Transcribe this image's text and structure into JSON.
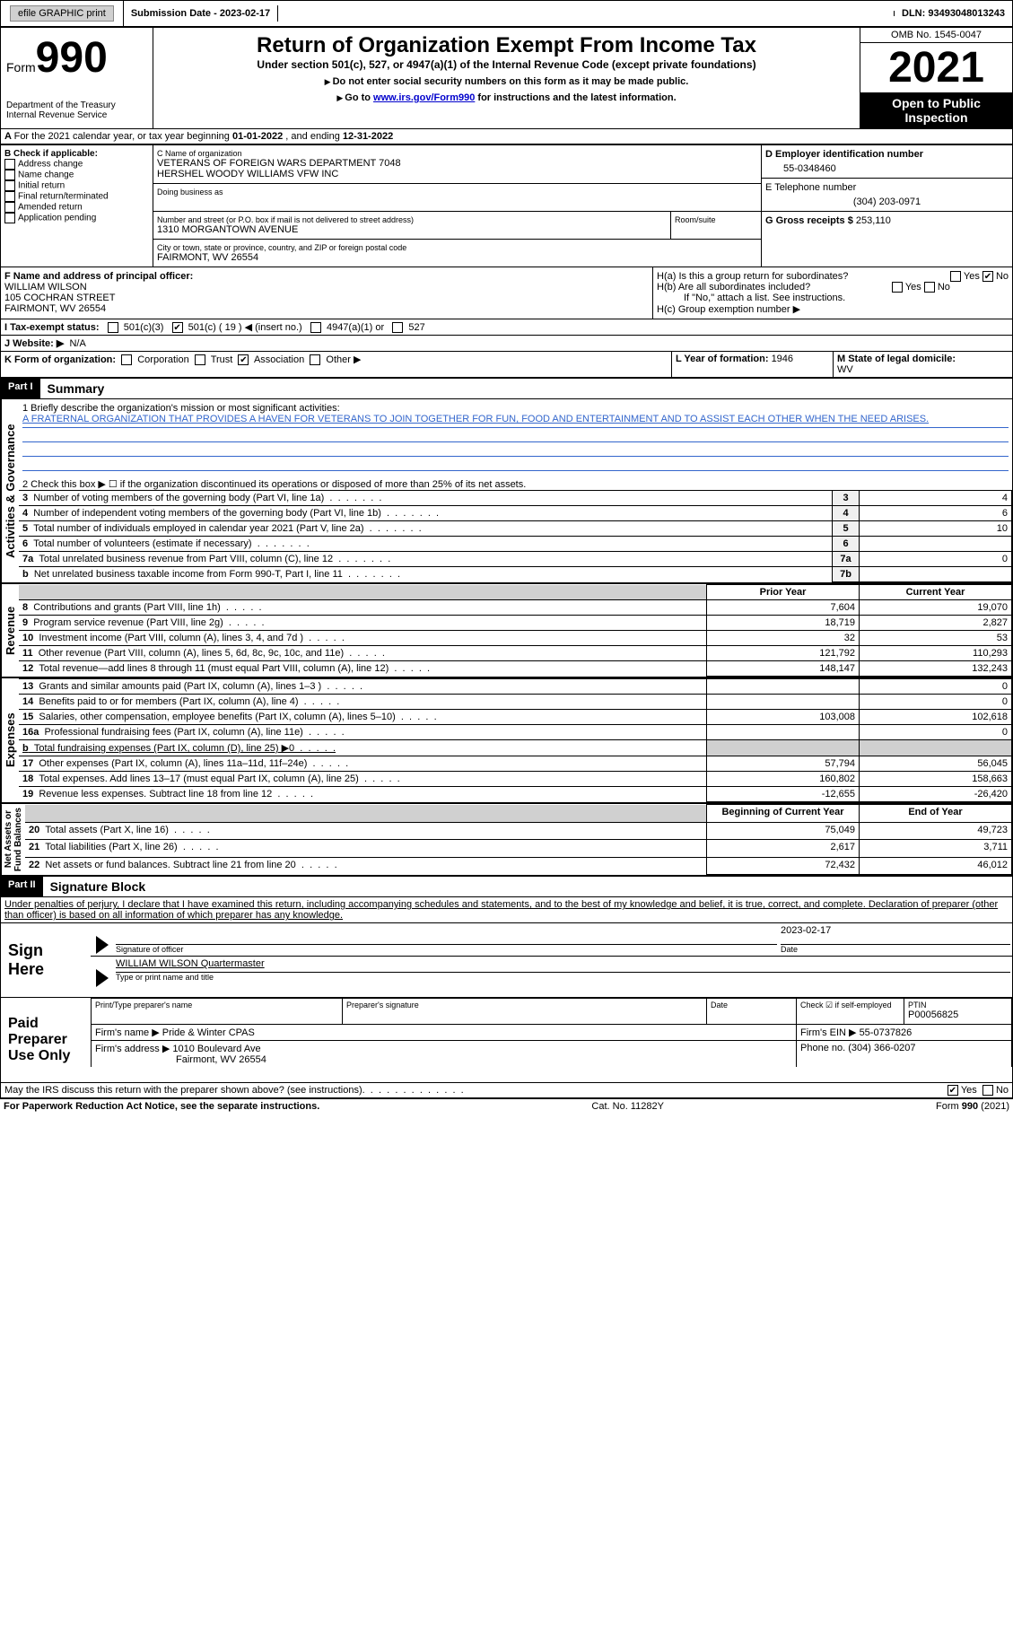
{
  "topbar": {
    "efile": "efile GRAPHIC print",
    "submission_label": "Submission Date - ",
    "submission_date": "2023-02-17",
    "dln_label": "DLN: ",
    "dln": "93493048013243"
  },
  "form": {
    "form_word": "Form",
    "form_number": "990",
    "title": "Return of Organization Exempt From Income Tax",
    "subtitle": "Under section 501(c), 527, or 4947(a)(1) of the Internal Revenue Code (except private foundations)",
    "note1": "Do not enter social security numbers on this form as it may be made public.",
    "note2_pre": "Go to ",
    "note2_link": "www.irs.gov/Form990",
    "note2_post": " for instructions and the latest information.",
    "dept": "Department of the Treasury\nInternal Revenue Service",
    "omb": "OMB No. 1545-0047",
    "year": "2021",
    "open": "Open to Public\nInspection"
  },
  "period": {
    "text_pre": "For the 2021 calendar year, or tax year beginning ",
    "begin": "01-01-2022",
    "mid": " , and ending ",
    "end": "12-31-2022"
  },
  "box_b": {
    "label": "B Check if applicable:",
    "items": [
      "Address change",
      "Name change",
      "Initial return",
      "Final return/terminated",
      "Amended return",
      "Application pending"
    ]
  },
  "box_c": {
    "name_label": "C Name of organization",
    "name": "VETERANS OF FOREIGN WARS DEPARTMENT 7048\nHERSHEL WOODY WILLIAMS VFW INC",
    "dba_label": "Doing business as",
    "street_label": "Number and street (or P.O. box if mail is not delivered to street address)",
    "room_label": "Room/suite",
    "street": "1310 MORGANTOWN AVENUE",
    "city_label": "City or town, state or province, country, and ZIP or foreign postal code",
    "city": "FAIRMONT, WV  26554"
  },
  "box_d": {
    "label": "D Employer identification number",
    "value": "55-0348460"
  },
  "box_e": {
    "label": "E Telephone number",
    "value": "(304) 203-0971"
  },
  "box_g": {
    "label": "G Gross receipts $ ",
    "value": "253,110"
  },
  "box_f": {
    "label": "F Name and address of principal officer:",
    "name": "WILLIAM WILSON",
    "street": "105 COCHRAN STREET",
    "city": "FAIRMONT, WV  26554"
  },
  "box_h": {
    "ha": "H(a)  Is this a group return for subordinates?",
    "hb": "H(b)  Are all subordinates included?",
    "hb_note": "If \"No,\" attach a list. See instructions.",
    "hc": "H(c)  Group exemption number ▶",
    "yes": "Yes",
    "no": "No"
  },
  "box_i": {
    "label": "I  Tax-exempt status:",
    "c3": "501(c)(3)",
    "c": "501(c) ( 19 ) ◀ (insert no.)",
    "a1": "4947(a)(1) or",
    "527": "527"
  },
  "box_j": {
    "label": "J  Website: ▶",
    "value": "N/A"
  },
  "box_k": {
    "label": "K Form of organization:",
    "opts": [
      "Corporation",
      "Trust",
      "Association",
      "Other ▶"
    ],
    "checked_index": 2
  },
  "box_l": {
    "label": "L Year of formation: ",
    "value": "1946"
  },
  "box_m": {
    "label": "M State of legal domicile:",
    "value": "WV"
  },
  "part1": {
    "header": "Part I",
    "title": "Summary",
    "sidebar_ag": "Activities & Governance",
    "sidebar_rev": "Revenue",
    "sidebar_exp": "Expenses",
    "sidebar_net": "Net Assets or\nFund Balances",
    "line1_label": "1  Briefly describe the organization's mission or most significant activities:",
    "line1_text": "A FRATERNAL ORGANIZATION THAT PROVIDES A HAVEN FOR VETERANS TO JOIN TOGETHER FOR FUN, FOOD AND ENTERTAINMENT AND TO ASSIST EACH OTHER WHEN THE NEED ARISES.",
    "line2": "2  Check this box ▶ ☐  if the organization discontinued its operations or disposed of more than 25% of its net assets.",
    "rows_ag": [
      {
        "n": "3",
        "label": "Number of voting members of the governing body (Part VI, line 1a)",
        "box": "3",
        "val": "4"
      },
      {
        "n": "4",
        "label": "Number of independent voting members of the governing body (Part VI, line 1b)",
        "box": "4",
        "val": "6"
      },
      {
        "n": "5",
        "label": "Total number of individuals employed in calendar year 2021 (Part V, line 2a)",
        "box": "5",
        "val": "10"
      },
      {
        "n": "6",
        "label": "Total number of volunteers (estimate if necessary)",
        "box": "6",
        "val": ""
      },
      {
        "n": "7a",
        "label": "Total unrelated business revenue from Part VIII, column (C), line 12",
        "box": "7a",
        "val": "0"
      },
      {
        "n": "b",
        "label": "Net unrelated business taxable income from Form 990-T, Part I, line 11",
        "box": "7b",
        "val": ""
      }
    ],
    "col_prior": "Prior Year",
    "col_current": "Current Year",
    "rows_rev": [
      {
        "n": "8",
        "label": "Contributions and grants (Part VIII, line 1h)",
        "prior": "7,604",
        "curr": "19,070"
      },
      {
        "n": "9",
        "label": "Program service revenue (Part VIII, line 2g)",
        "prior": "18,719",
        "curr": "2,827"
      },
      {
        "n": "10",
        "label": "Investment income (Part VIII, column (A), lines 3, 4, and 7d )",
        "prior": "32",
        "curr": "53"
      },
      {
        "n": "11",
        "label": "Other revenue (Part VIII, column (A), lines 5, 6d, 8c, 9c, 10c, and 11e)",
        "prior": "121,792",
        "curr": "110,293"
      },
      {
        "n": "12",
        "label": "Total revenue—add lines 8 through 11 (must equal Part VIII, column (A), line 12)",
        "prior": "148,147",
        "curr": "132,243"
      }
    ],
    "rows_exp": [
      {
        "n": "13",
        "label": "Grants and similar amounts paid (Part IX, column (A), lines 1–3 )",
        "prior": "",
        "curr": "0"
      },
      {
        "n": "14",
        "label": "Benefits paid to or for members (Part IX, column (A), line 4)",
        "prior": "",
        "curr": "0"
      },
      {
        "n": "15",
        "label": "Salaries, other compensation, employee benefits (Part IX, column (A), lines 5–10)",
        "prior": "103,008",
        "curr": "102,618"
      },
      {
        "n": "16a",
        "label": "Professional fundraising fees (Part IX, column (A), line 11e)",
        "prior": "",
        "curr": "0"
      },
      {
        "n": "b",
        "label": "Total fundraising expenses (Part IX, column (D), line 25) ▶0",
        "prior": "SHADE",
        "curr": "SHADE"
      },
      {
        "n": "17",
        "label": "Other expenses (Part IX, column (A), lines 11a–11d, 11f–24e)",
        "prior": "57,794",
        "curr": "56,045"
      },
      {
        "n": "18",
        "label": "Total expenses. Add lines 13–17 (must equal Part IX, column (A), line 25)",
        "prior": "160,802",
        "curr": "158,663"
      },
      {
        "n": "19",
        "label": "Revenue less expenses. Subtract line 18 from line 12",
        "prior": "-12,655",
        "curr": "-26,420"
      }
    ],
    "col_begin": "Beginning of Current Year",
    "col_end": "End of Year",
    "rows_net": [
      {
        "n": "20",
        "label": "Total assets (Part X, line 16)",
        "prior": "75,049",
        "curr": "49,723"
      },
      {
        "n": "21",
        "label": "Total liabilities (Part X, line 26)",
        "prior": "2,617",
        "curr": "3,711"
      },
      {
        "n": "22",
        "label": "Net assets or fund balances. Subtract line 21 from line 20",
        "prior": "72,432",
        "curr": "46,012"
      }
    ]
  },
  "part2": {
    "header": "Part II",
    "title": "Signature Block",
    "jurat": "Under penalties of perjury, I declare that I have examined this return, including accompanying schedules and statements, and to the best of my knowledge and belief, it is true, correct, and complete. Declaration of preparer (other than officer) is based on all information of which preparer has any knowledge.",
    "sign_here": "Sign\nHere",
    "sig_officer": "Signature of officer",
    "sig_date": "2023-02-17",
    "date_label": "Date",
    "officer_name": "WILLIAM WILSON  Quartermaster",
    "type_name": "Type or print name and title",
    "paid": "Paid\nPreparer\nUse Only",
    "print_name": "Print/Type preparer's name",
    "prep_sig": "Preparer's signature",
    "check_if": "Check ☑ if self-employed",
    "ptin_label": "PTIN",
    "ptin": "P00056825",
    "firm_name_label": "Firm's name    ▶ ",
    "firm_name": "Pride & Winter CPAS",
    "firm_ein_label": "Firm's EIN ▶ ",
    "firm_ein": "55-0737826",
    "firm_addr_label": "Firm's address ▶ ",
    "firm_addr": "1010 Boulevard Ave",
    "firm_city": "Fairmont, WV  26554",
    "phone_label": "Phone no. ",
    "phone": "(304) 366-0207",
    "discuss": "May the IRS discuss this return with the preparer shown above? (see instructions)"
  },
  "footer": {
    "left": "For Paperwork Reduction Act Notice, see the separate instructions.",
    "mid": "Cat. No. 11282Y",
    "right": "Form 990 (2021)"
  }
}
